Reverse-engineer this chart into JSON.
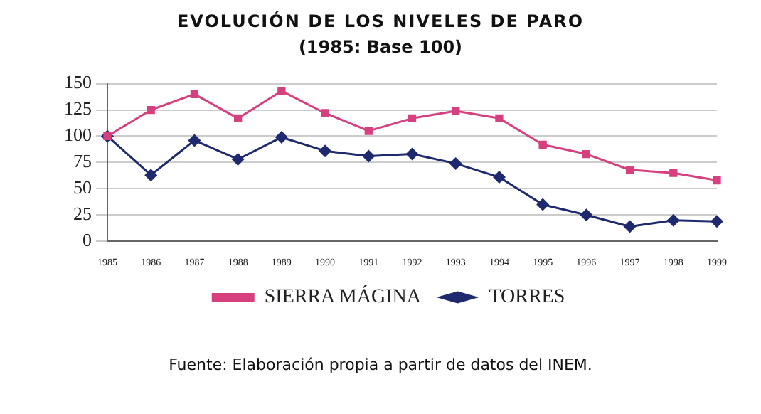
{
  "chart_data": {
    "type": "line",
    "title": "EVOLUCIÓN DE LOS NIVELES DE PARO",
    "subtitle": "(1985: Base 100)",
    "categories": [
      "1985",
      "1986",
      "1987",
      "1988",
      "1989",
      "1990",
      "1991",
      "1992",
      "1993",
      "1994",
      "1995",
      "1996",
      "1997",
      "1998",
      "1999"
    ],
    "series": [
      {
        "name": "TORRES",
        "color": "#1f2a6e",
        "marker": "diamond",
        "values": [
          100,
          63,
          96,
          78,
          99,
          86,
          81,
          83,
          74,
          61,
          35,
          25,
          14,
          20,
          19
        ]
      },
      {
        "name": "SIERRA MÁGINA",
        "color": "#d6407f",
        "marker": "square",
        "values": [
          100,
          125,
          140,
          117,
          143,
          122,
          105,
          117,
          124,
          117,
          92,
          83,
          68,
          65,
          58
        ]
      }
    ],
    "ylim": [
      0,
      150
    ],
    "yticks": [
      0,
      25,
      50,
      75,
      100,
      125,
      150
    ],
    "grid": "y",
    "legend": "bottom",
    "annotations": [
      "Fuente: Elaboración propia a partir de datos del INEM."
    ]
  }
}
